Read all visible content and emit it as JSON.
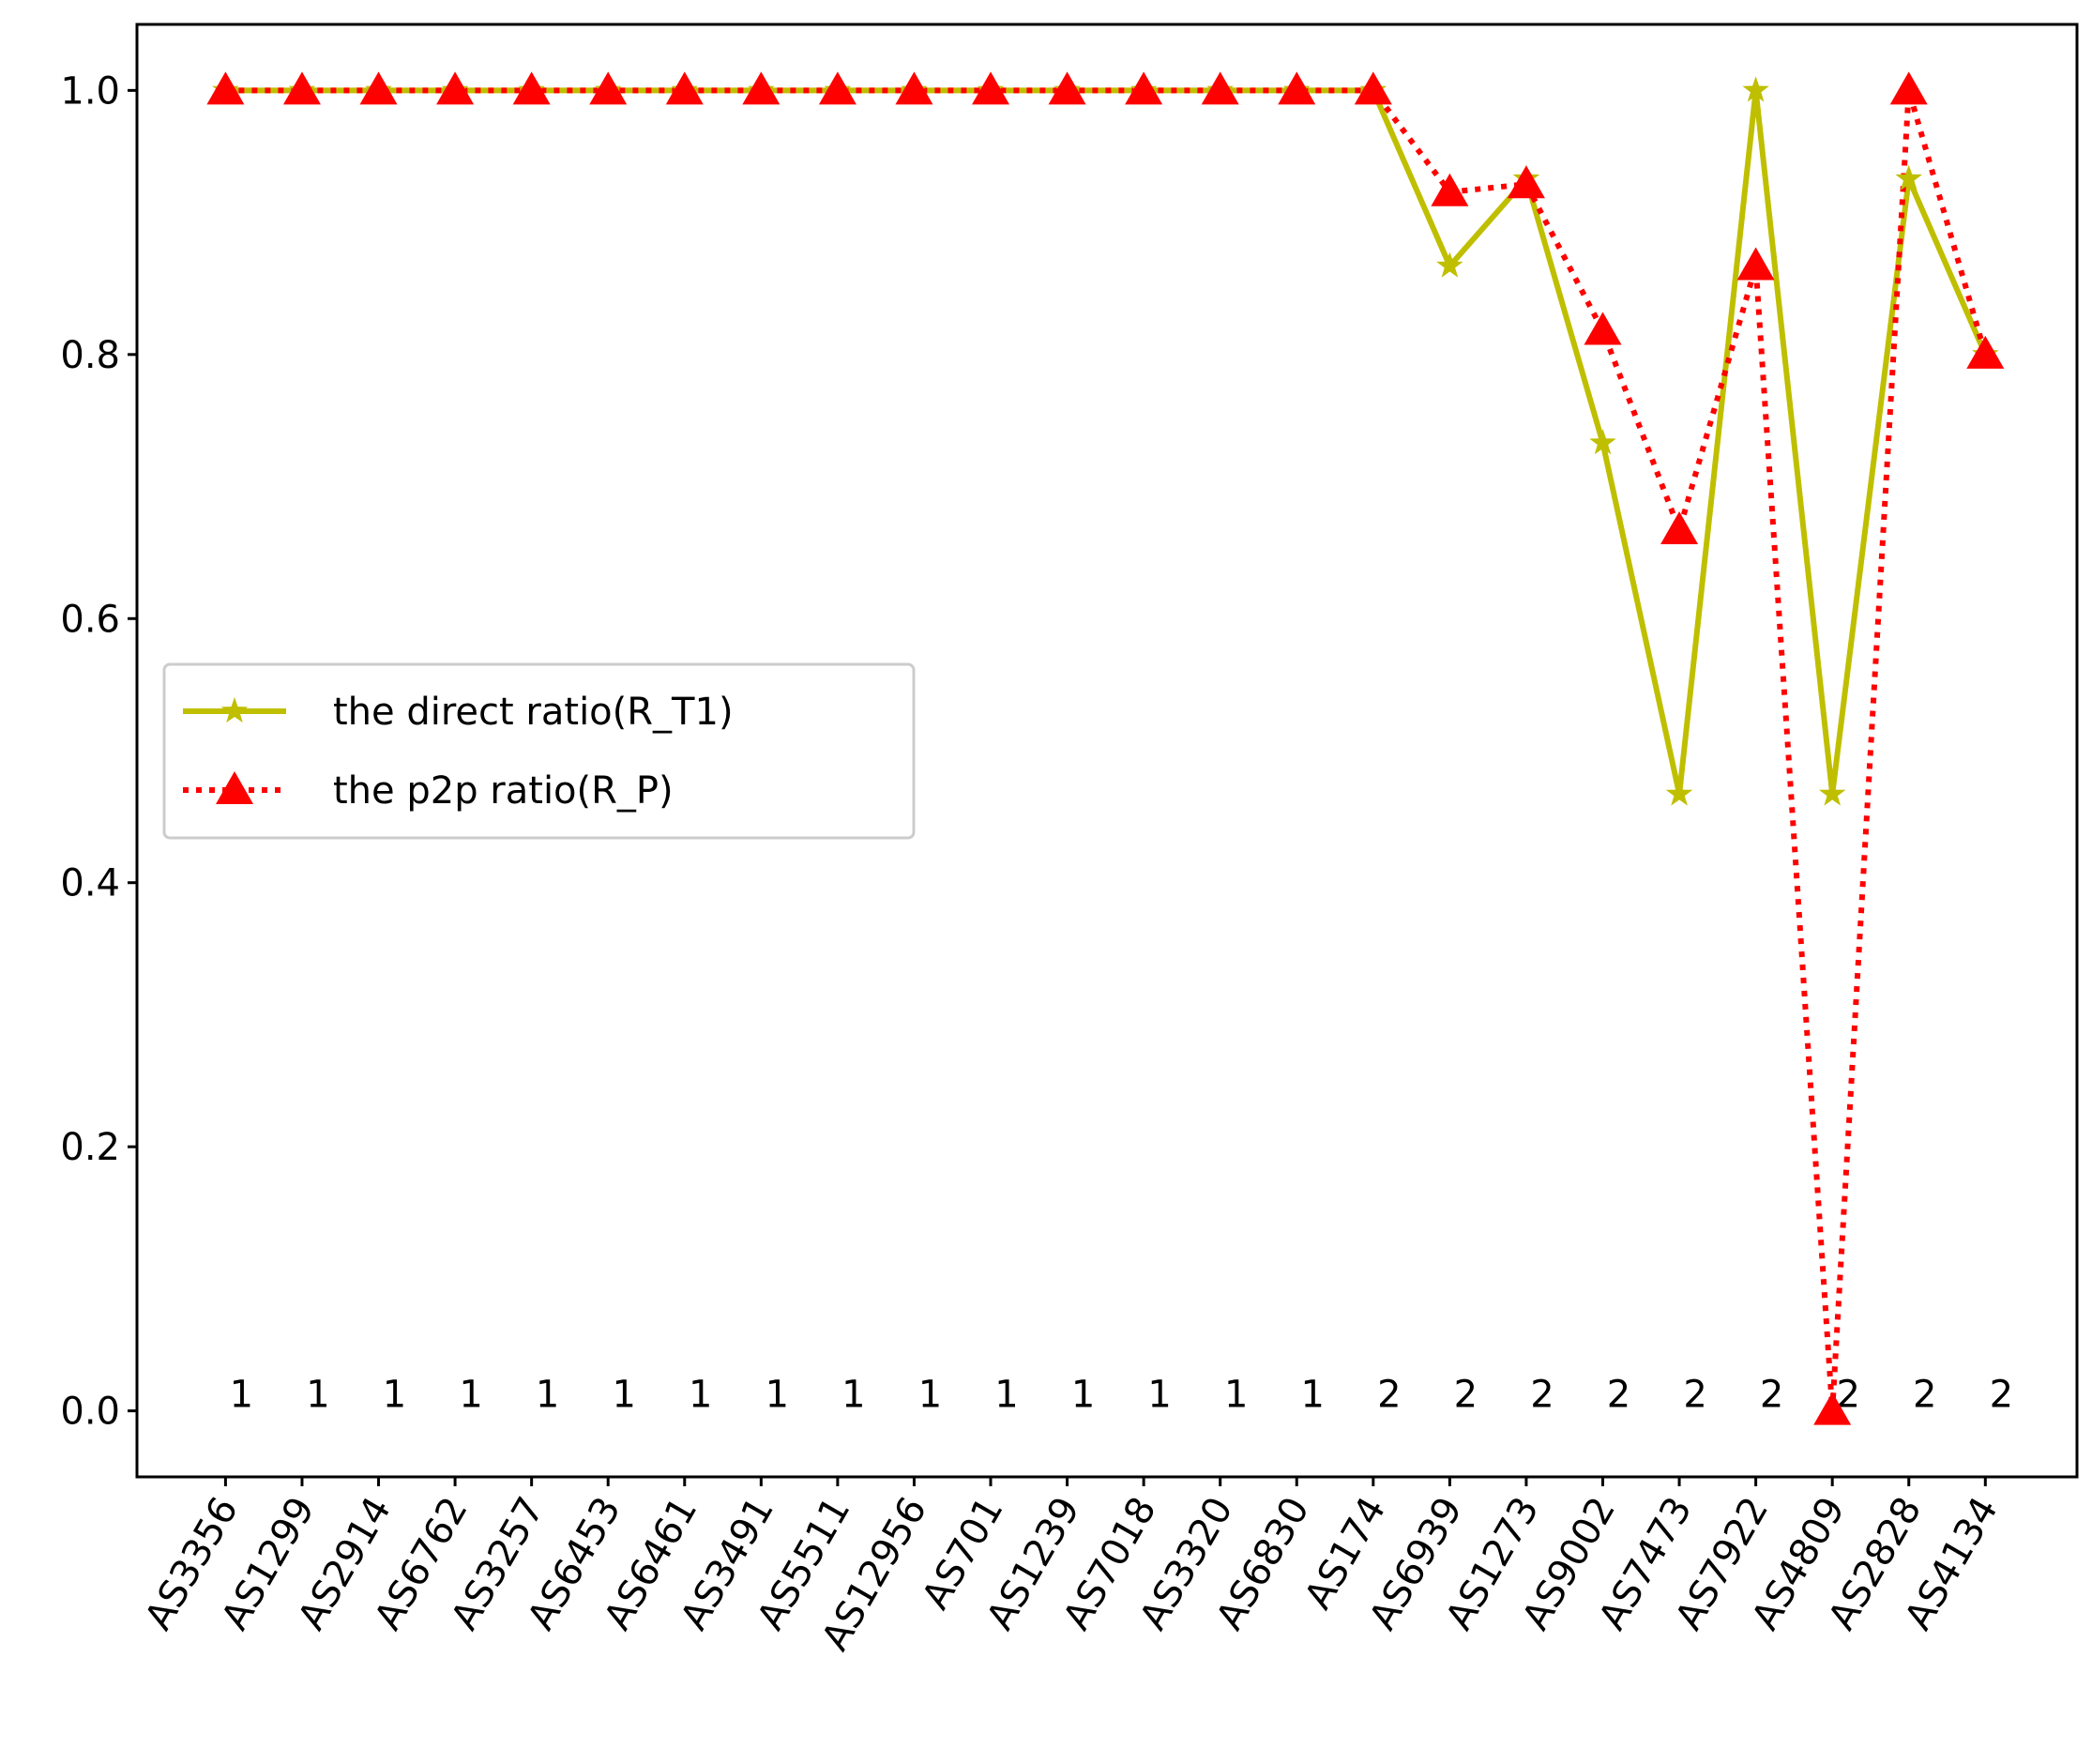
{
  "chart_data": {
    "type": "line",
    "categories": [
      "AS3356",
      "AS1299",
      "AS2914",
      "AS6762",
      "AS3257",
      "AS6453",
      "AS6461",
      "AS3491",
      "AS5511",
      "AS12956",
      "AS701",
      "AS1239",
      "AS7018",
      "AS3320",
      "AS6830",
      "AS174",
      "AS6939",
      "AS1273",
      "AS9002",
      "AS7473",
      "AS7922",
      "AS4809",
      "AS2828",
      "AS4134"
    ],
    "series": [
      {
        "name": "the direct ratio(R_T1)",
        "color": "#bfbf00",
        "marker": "star",
        "linestyle": "solid",
        "values": [
          1,
          1,
          1,
          1,
          1,
          1,
          1,
          1,
          1,
          1,
          1,
          1,
          1,
          1,
          1,
          1,
          0.867,
          0.933,
          0.733,
          0.467,
          1,
          0.467,
          0.933,
          0.8
        ]
      },
      {
        "name": "the p2p ratio(R_P)",
        "color": "#ff0000",
        "marker": "triangle",
        "linestyle": "dotted",
        "values": [
          1,
          1,
          1,
          1,
          1,
          1,
          1,
          1,
          1,
          1,
          1,
          1,
          1,
          1,
          1,
          1,
          0.923,
          0.929,
          0.818,
          0.667,
          0.867,
          0,
          1,
          0.8
        ]
      }
    ],
    "annotations": [
      1,
      1,
      1,
      1,
      1,
      1,
      1,
      1,
      1,
      1,
      1,
      1,
      1,
      1,
      1,
      2,
      2,
      2,
      2,
      2,
      2,
      2,
      2,
      2
    ],
    "ylim": [
      -0.05,
      1.05
    ],
    "yticks": [
      {
        "value": 0,
        "label": "0.0"
      },
      {
        "value": 0.2,
        "label": "0.2"
      },
      {
        "value": 0.4,
        "label": "0.4"
      },
      {
        "value": 0.6,
        "label": "0.6"
      },
      {
        "value": 0.8,
        "label": "0.8"
      },
      {
        "value": 1,
        "label": "1.0"
      }
    ],
    "legend": "center-left",
    "grid": false
  }
}
